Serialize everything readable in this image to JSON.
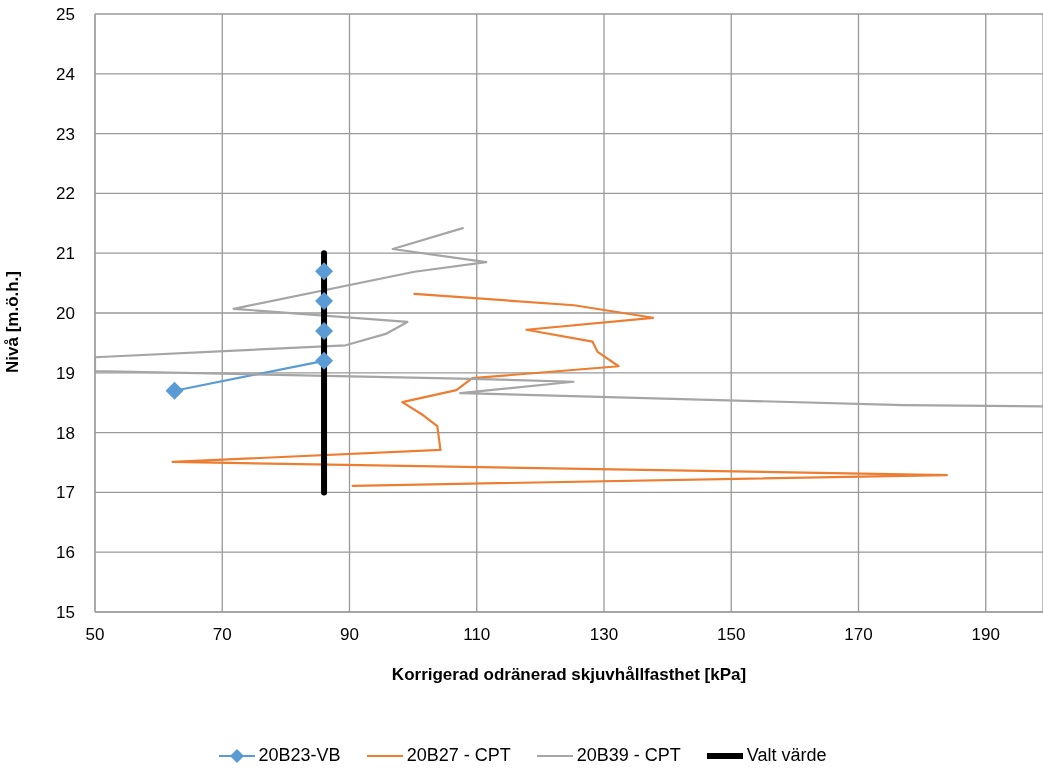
{
  "chart_data": {
    "type": "line",
    "xlabel": "Korrigerad odränerad skjuvhållfasthet [kPa]",
    "ylabel": "Nivå [m.ö.h.]",
    "xlim": [
      50,
      199
    ],
    "xticks": [
      50,
      70,
      90,
      110,
      130,
      150,
      170,
      190
    ],
    "ylim": [
      15,
      25
    ],
    "yticks": [
      15,
      16,
      17,
      18,
      19,
      20,
      21,
      22,
      23,
      24,
      25
    ],
    "grid": true,
    "legend": "bottom",
    "line_style": "solid",
    "series": [
      {
        "name": "20B23-VB",
        "color": "#5b9bd5",
        "marker": "diamond",
        "x": [
          62.5,
          86,
          86,
          86,
          86
        ],
        "values": [
          18.7,
          19.2,
          19.7,
          20.2,
          20.7
        ]
      },
      {
        "name": "20B27 - CPT",
        "color": "#ed7d31",
        "marker": "none",
        "x": [
          100.2,
          125.3,
          137.7,
          117.8,
          128.2,
          129,
          132.3,
          109.3,
          106.8,
          98.3,
          101.6,
          103.8,
          104.3,
          62.2,
          183.9,
          90.5
        ],
        "values": [
          20.32,
          20.13,
          19.92,
          19.72,
          19.52,
          19.35,
          19.11,
          18.91,
          18.71,
          18.51,
          18.29,
          18.11,
          17.71,
          17.51,
          17.29,
          17.11
        ]
      },
      {
        "name": "20B39 - CPT",
        "color": "#a5a5a5",
        "marker": "none",
        "x": [
          107.8,
          96.8,
          111.5,
          100.2,
          71.8,
          99.1,
          95.7,
          89.4,
          50,
          50,
          109.3,
          125.2,
          107.4,
          177.1,
          199
        ],
        "values": [
          21.42,
          21.07,
          20.85,
          20.69,
          20.07,
          19.85,
          19.65,
          19.46,
          19.26,
          19.03,
          18.9,
          18.85,
          18.66,
          18.46,
          18.44
        ]
      },
      {
        "name": "Valt värde",
        "color": "#000000",
        "marker": "none",
        "x": [
          86,
          86
        ],
        "values": [
          17,
          21
        ]
      }
    ]
  }
}
